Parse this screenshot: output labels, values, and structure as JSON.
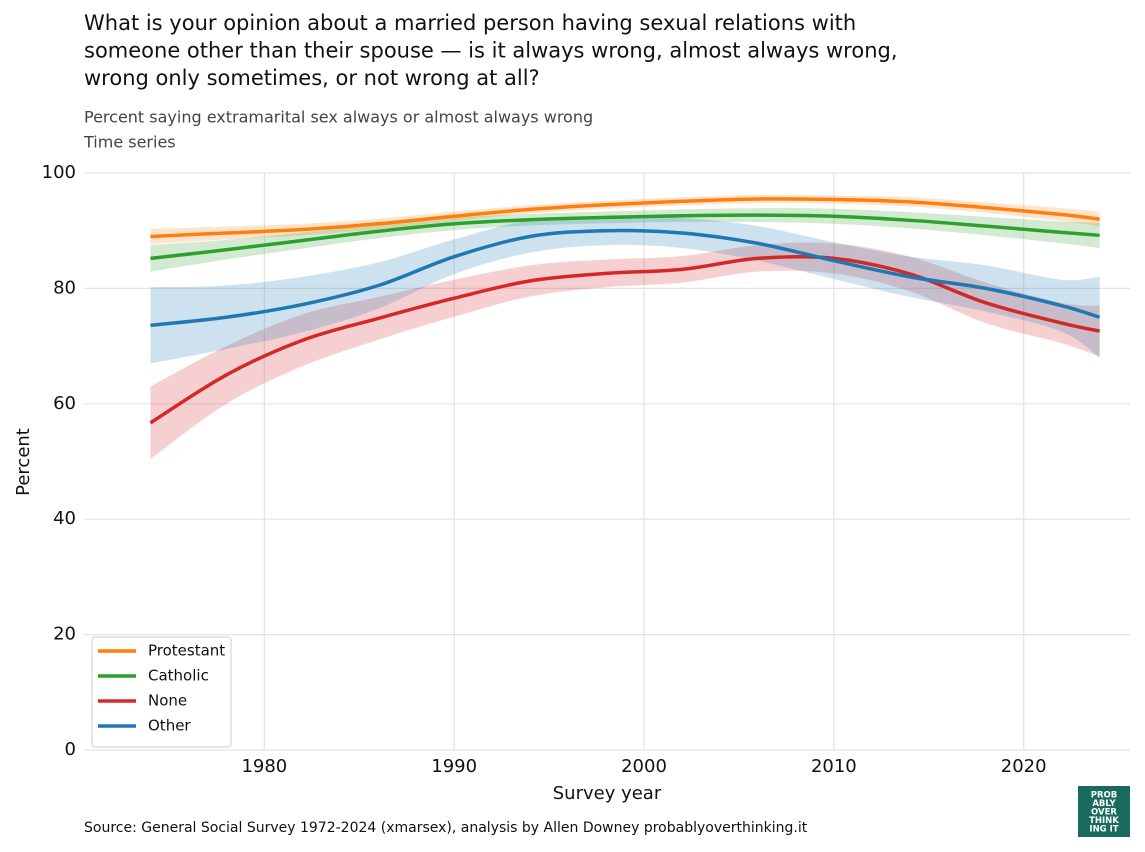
{
  "chart_data": {
    "type": "line",
    "title": [
      "What is your opinion about a married person having sexual relations with",
      "someone other than their spouse — is it always wrong, almost always wrong,",
      "wrong only sometimes, or not wrong at all?"
    ],
    "subtitle": [
      "Percent saying extramarital sex always or almost always wrong",
      "Time series"
    ],
    "xlabel": "Survey year",
    "ylabel": "Percent",
    "source": "Source: General Social Survey 1972-2024 (xmarsex), analysis by Allen Downey probablyoverthinking.it",
    "logo": [
      "PROB",
      "ABLY",
      "OVER",
      "THINK",
      "ING IT"
    ],
    "x": [
      1974,
      1978,
      1982,
      1986,
      1990,
      1994,
      1998,
      2002,
      2006,
      2010,
      2014,
      2018,
      2022,
      2024
    ],
    "series": [
      {
        "name": "Protestant",
        "color": "#ff7f0e",
        "values": [
          89,
          89.6,
          90.2,
          91.2,
          92.5,
          93.7,
          94.5,
          95.1,
          95.5,
          95.4,
          95,
          94,
          92.8,
          92
        ],
        "upper": [
          90.3,
          90.7,
          91.2,
          92.1,
          93.3,
          94.4,
          95.2,
          95.8,
          96.2,
          96.1,
          95.8,
          94.9,
          93.9,
          93.3
        ],
        "lower": [
          87.7,
          88.5,
          89.2,
          90.3,
          91.7,
          93,
          93.8,
          94.4,
          94.8,
          94.7,
          94.2,
          93.1,
          91.7,
          90.7
        ]
      },
      {
        "name": "Catholic",
        "color": "#2ca02c",
        "values": [
          85.2,
          86.7,
          88.3,
          89.9,
          91.2,
          91.9,
          92.3,
          92.6,
          92.7,
          92.5,
          91.8,
          90.8,
          89.7,
          89.2
        ],
        "upper": [
          87.5,
          88.4,
          89.7,
          91.1,
          92.3,
          92.9,
          93.3,
          93.7,
          93.9,
          93.8,
          93.2,
          92.4,
          91.6,
          91.4
        ],
        "lower": [
          82.9,
          85,
          86.9,
          88.7,
          90.1,
          90.9,
          91.3,
          91.5,
          91.5,
          91.2,
          90.4,
          89.2,
          87.8,
          87
        ]
      },
      {
        "name": "None",
        "color": "#d62728",
        "values": [
          56.7,
          65,
          71,
          74.8,
          78.3,
          81.3,
          82.6,
          83.3,
          85.2,
          85.2,
          82.5,
          77.5,
          74,
          72.6
        ],
        "upper": [
          63,
          70,
          75.5,
          78.5,
          81.5,
          84,
          85,
          85.6,
          87.5,
          87.8,
          85.5,
          81,
          77.5,
          77
        ],
        "lower": [
          50.4,
          60,
          66.5,
          71.1,
          75.1,
          78.6,
          80.2,
          81,
          82.9,
          82.6,
          79.5,
          74,
          70.5,
          68.2
        ]
      },
      {
        "name": "Other",
        "color": "#1f77b4",
        "values": [
          73.6,
          75,
          77.2,
          80.5,
          85.5,
          89,
          90,
          89.6,
          87.8,
          84.8,
          82,
          80,
          77,
          75
        ],
        "upper": [
          80.2,
          80.5,
          82,
          84.5,
          88.5,
          91.8,
          92.5,
          92.2,
          90.8,
          88,
          85.5,
          84,
          81.5,
          82
        ],
        "lower": [
          67,
          69.5,
          72.4,
          76.5,
          82.5,
          86.2,
          87.5,
          87,
          84.8,
          81.6,
          78.5,
          76,
          72.5,
          68
        ]
      }
    ],
    "xlim": [
      1970.5,
      2025.6
    ],
    "xticks": [
      1980,
      1990,
      2000,
      2010,
      2020
    ],
    "ylim": [
      0,
      100
    ],
    "yticks": [
      0,
      20,
      40,
      60,
      80,
      100
    ],
    "grid": true,
    "legend": "lower left"
  }
}
